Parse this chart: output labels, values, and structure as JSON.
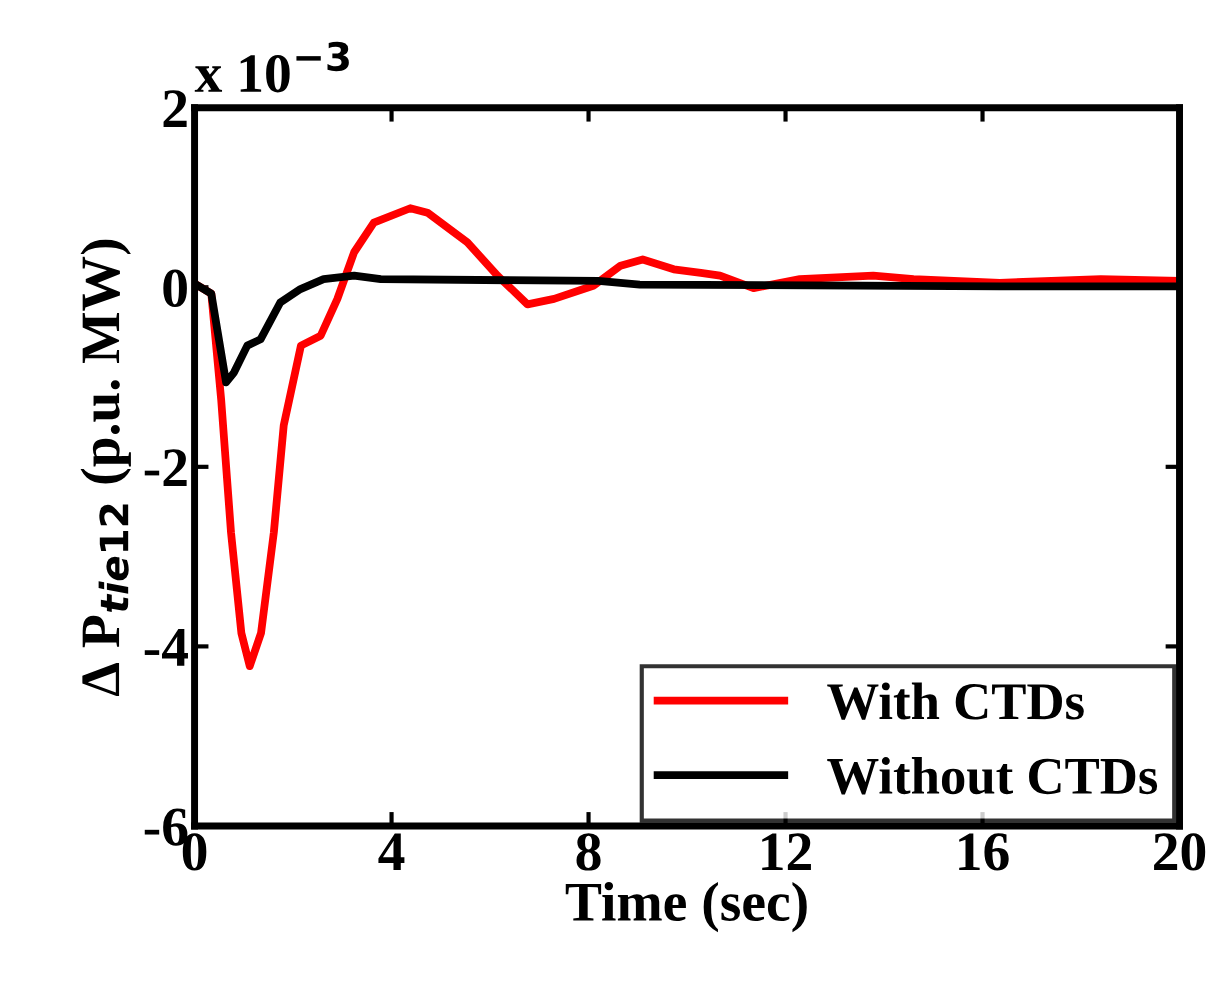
{
  "chart_data": {
    "type": "line",
    "xlabel": "Time (sec)",
    "ylabel": "Δ P$_{tie12}$ (p.u. MW)",
    "annotations": [
      "x 10$^{−3}$"
    ],
    "xlim": [
      0,
      20
    ],
    "ylim": [
      -6,
      2
    ],
    "xticks": [
      0,
      4,
      8,
      12,
      16,
      20
    ],
    "yticks": [
      -6,
      -4,
      -2,
      0,
      2
    ],
    "legend": "bottom right",
    "grid": false,
    "line_style": "solid",
    "marker": "none",
    "series": [
      {
        "name": "With CTDs",
        "color": "#ff0000",
        "x": [
          0,
          0.34,
          0.54,
          0.74,
          0.95,
          1.12,
          1.35,
          1.61,
          1.81,
          2.16,
          2.56,
          2.9,
          3.24,
          3.64,
          4.38,
          4.73,
          5.54,
          6.15,
          6.76,
          7.3,
          8.11,
          8.65,
          9.1,
          9.73,
          10.28,
          10.67,
          11.35,
          12.29,
          13.78,
          14.6,
          16.35,
          18.4,
          20
        ],
        "values": [
          0.04,
          -0.07,
          -1.25,
          -2.73,
          -3.85,
          -4.22,
          -3.85,
          -2.73,
          -1.54,
          -0.65,
          -0.54,
          -0.13,
          0.39,
          0.72,
          0.88,
          0.83,
          0.5,
          0.13,
          -0.19,
          -0.13,
          0.02,
          0.24,
          0.31,
          0.2,
          0.16,
          0.13,
          -0.01,
          0.09,
          0.13,
          0.09,
          0.05,
          0.09,
          0.07
        ]
      },
      {
        "name": "Without CTDs",
        "color": "#000000",
        "x": [
          0,
          0.34,
          0.47,
          0.64,
          0.8,
          1.07,
          1.34,
          1.74,
          2.15,
          2.62,
          3.24,
          3.78,
          8.2,
          9.04,
          16.35,
          20
        ],
        "values": [
          0.04,
          -0.07,
          -0.5,
          -1.06,
          -0.95,
          -0.65,
          -0.58,
          -0.17,
          -0.02,
          0.09,
          0.13,
          0.09,
          0.07,
          0.03,
          0.01,
          0.01
        ]
      }
    ]
  }
}
